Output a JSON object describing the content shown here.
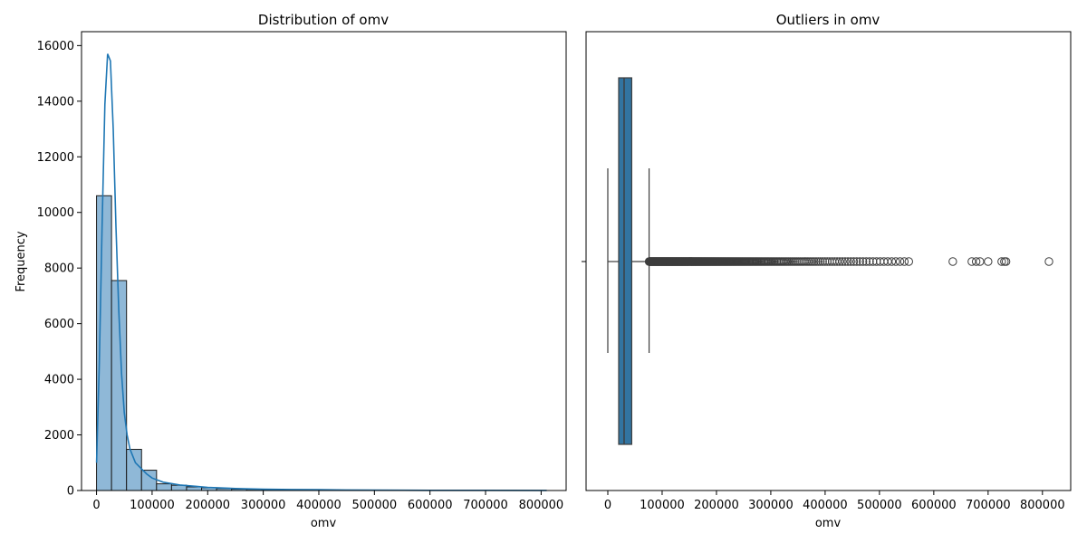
{
  "chart_data": [
    {
      "type": "bar",
      "title": "Distribution of omv",
      "xlabel": "omv",
      "ylabel": "Frequency",
      "xlim": [
        -27000,
        845000
      ],
      "ylim": [
        0,
        16500
      ],
      "x_ticks": [
        0,
        100000,
        200000,
        300000,
        400000,
        500000,
        600000,
        700000,
        800000
      ],
      "y_ticks": [
        0,
        2000,
        4000,
        6000,
        8000,
        10000,
        12000,
        14000,
        16000
      ],
      "bin_width": 27000,
      "bins": [
        {
          "x0": 0,
          "x1": 27000,
          "value": 10600
        },
        {
          "x0": 27000,
          "x1": 54000,
          "value": 7550
        },
        {
          "x0": 54000,
          "x1": 81000,
          "value": 1480
        },
        {
          "x0": 81000,
          "x1": 108000,
          "value": 730
        },
        {
          "x0": 108000,
          "x1": 135000,
          "value": 240
        },
        {
          "x0": 135000,
          "x1": 162000,
          "value": 190
        },
        {
          "x0": 162000,
          "x1": 189000,
          "value": 130
        },
        {
          "x0": 189000,
          "x1": 216000,
          "value": 100
        },
        {
          "x0": 216000,
          "x1": 243000,
          "value": 70
        },
        {
          "x0": 243000,
          "x1": 270000,
          "value": 50
        },
        {
          "x0": 270000,
          "x1": 297000,
          "value": 40
        },
        {
          "x0": 297000,
          "x1": 324000,
          "value": 30
        },
        {
          "x0": 324000,
          "x1": 351000,
          "value": 22
        },
        {
          "x0": 351000,
          "x1": 378000,
          "value": 18
        },
        {
          "x0": 378000,
          "x1": 405000,
          "value": 14
        },
        {
          "x0": 405000,
          "x1": 432000,
          "value": 10
        },
        {
          "x0": 432000,
          "x1": 459000,
          "value": 8
        },
        {
          "x0": 459000,
          "x1": 486000,
          "value": 7
        },
        {
          "x0": 486000,
          "x1": 513000,
          "value": 6
        },
        {
          "x0": 513000,
          "x1": 540000,
          "value": 5
        },
        {
          "x0": 540000,
          "x1": 567000,
          "value": 4
        },
        {
          "x0": 567000,
          "x1": 594000,
          "value": 1
        },
        {
          "x0": 594000,
          "x1": 621000,
          "value": 1
        },
        {
          "x0": 621000,
          "x1": 648000,
          "value": 1
        },
        {
          "x0": 648000,
          "x1": 675000,
          "value": 1
        },
        {
          "x0": 675000,
          "x1": 702000,
          "value": 2
        },
        {
          "x0": 702000,
          "x1": 729000,
          "value": 1
        },
        {
          "x0": 729000,
          "x1": 756000,
          "value": 2
        },
        {
          "x0": 756000,
          "x1": 783000,
          "value": 1
        },
        {
          "x0": 783000,
          "x1": 810000,
          "value": 1
        }
      ],
      "kde": {
        "x": [
          0,
          5000,
          10000,
          15000,
          20000,
          25000,
          30000,
          35000,
          40000,
          45000,
          50000,
          55000,
          60000,
          70000,
          80000,
          90000,
          100000,
          120000,
          150000,
          180000,
          200000,
          250000,
          300000,
          350000,
          400000,
          450000,
          500000,
          550000,
          600000,
          700000,
          810000
        ],
        "y": [
          1000,
          4500,
          9500,
          13900,
          15700,
          15450,
          13000,
          9500,
          6500,
          4200,
          2800,
          2000,
          1500,
          1000,
          800,
          600,
          450,
          300,
          200,
          150,
          110,
          70,
          45,
          35,
          30,
          20,
          15,
          10,
          8,
          5,
          3
        ]
      },
      "colors": {
        "bar_fill": "#8fb8d7",
        "bar_edge": "#1a1a1a",
        "kde_line": "#1f77b4"
      }
    },
    {
      "type": "box",
      "title": "Outliers in omv",
      "xlabel": "omv",
      "xlim": [
        -40000,
        852000
      ],
      "x_ticks": [
        0,
        100000,
        200000,
        300000,
        400000,
        500000,
        600000,
        700000,
        800000
      ],
      "box": {
        "whisker_low": 0,
        "q1": 20000,
        "median": 30000,
        "q3": 44000,
        "whisker_high": 76000
      },
      "outlier_ranges": [
        [
          76000,
          560000
        ]
      ],
      "outliers": [
        635000,
        670000,
        678000,
        685000,
        700000,
        725000,
        730000,
        733000,
        812000
      ],
      "colors": {
        "box_fill": "#3274a1",
        "line": "#3d3d3d"
      }
    }
  ]
}
